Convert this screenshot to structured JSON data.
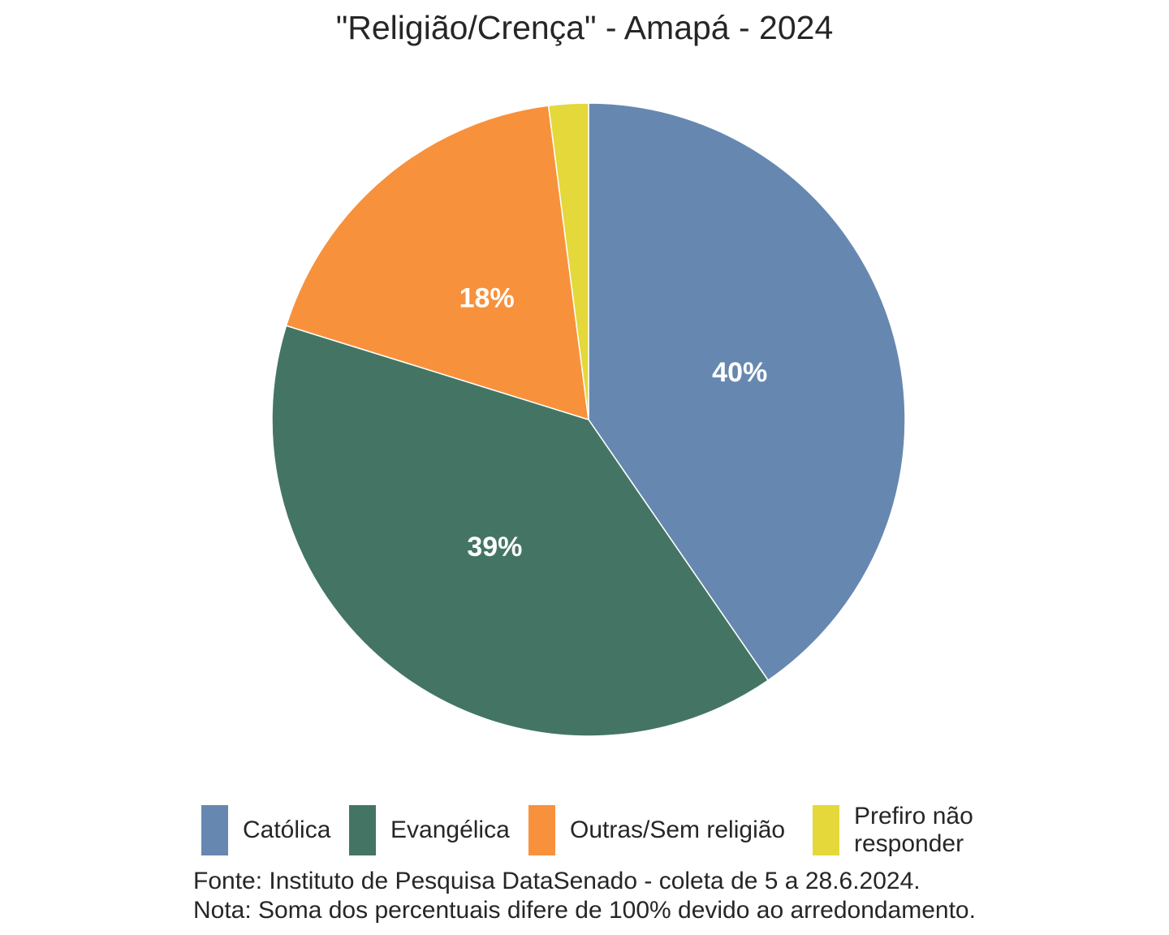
{
  "chart_data": {
    "type": "pie",
    "title": "\"Religião/Crença\" - Amapá - 2024",
    "categories": [
      "Católica",
      "Evangélica",
      "Outras/Sem religião",
      "Prefiro não responder"
    ],
    "values": [
      40,
      39,
      18,
      2
    ],
    "data_labels": [
      "40%",
      "39%",
      "18%",
      ""
    ],
    "colors": [
      "#6688b0",
      "#447564",
      "#f8913c",
      "#e4d83a"
    ],
    "legend_position": "bottom",
    "caption": [
      "Fonte: Instituto de Pesquisa DataSenado - coleta de 5 a 28.6.2024.",
      "Nota: Soma dos percentuais difere de 100% devido ao arredondamento."
    ]
  }
}
